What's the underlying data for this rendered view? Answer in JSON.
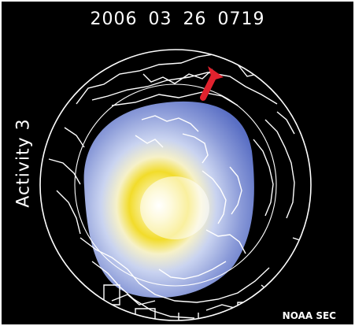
{
  "header": {
    "timestamp": "2006 03 26 0719"
  },
  "side_label": {
    "activity": "Activity 3"
  },
  "footer": {
    "credit": "NOAA SEC"
  },
  "colors": {
    "background": "#000000",
    "outline": "#ffffff",
    "oval_low": "#5a6fc4",
    "oval_mid": "#c9d3f0",
    "oval_high": "#f2dc2a",
    "arrow": "#e0222e"
  },
  "icons": {
    "direction_marker": "red-arrow-icon"
  }
}
